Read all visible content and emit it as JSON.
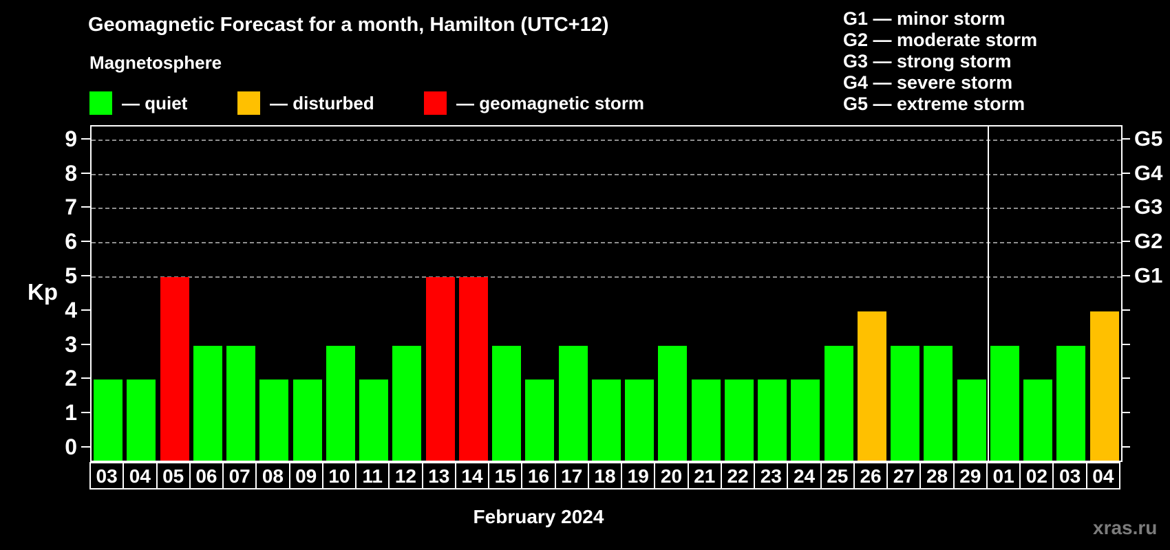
{
  "title": "Geomagnetic Forecast for a month, Hamilton (UTC+12)",
  "subtitle": "Magnetosphere",
  "legend": {
    "items": [
      {
        "key": "quiet",
        "label": "— quiet",
        "color": "#00ff00"
      },
      {
        "key": "disturbed",
        "label": "— disturbed",
        "color": "#ffc000"
      },
      {
        "key": "storm",
        "label": "— geomagnetic storm",
        "color": "#ff0000"
      }
    ]
  },
  "g_scale_legend": {
    "lines": [
      "G1 — minor storm",
      "G2 — moderate storm",
      "G3 — strong storm",
      "G4 — severe storm",
      "G5 — extreme storm"
    ]
  },
  "watermark": "xras.ru",
  "chart_data": {
    "type": "bar",
    "title": "Geomagnetic Forecast for a month, Hamilton (UTC+12)",
    "xlabel": "February 2024",
    "ylabel": "Kp",
    "ylim": [
      0,
      9
    ],
    "yticks": [
      0,
      1,
      2,
      3,
      4,
      5,
      6,
      7,
      8,
      9
    ],
    "grid": "dashed horizontal at Kp 5-9 only",
    "gridline_kp": [
      5,
      6,
      7,
      8,
      9
    ],
    "right_axis_labels": [
      {
        "kp": 5,
        "label": "G1"
      },
      {
        "kp": 6,
        "label": "G2"
      },
      {
        "kp": 7,
        "label": "G3"
      },
      {
        "kp": 8,
        "label": "G4"
      },
      {
        "kp": 9,
        "label": "G5"
      }
    ],
    "categories": [
      "03",
      "04",
      "05",
      "06",
      "07",
      "08",
      "09",
      "10",
      "11",
      "12",
      "13",
      "14",
      "15",
      "16",
      "17",
      "18",
      "19",
      "20",
      "21",
      "22",
      "23",
      "24",
      "25",
      "26",
      "27",
      "28",
      "29",
      "01",
      "02",
      "03",
      "04"
    ],
    "values": [
      2,
      2,
      5,
      3,
      3,
      2,
      2,
      3,
      2,
      3,
      5,
      5,
      3,
      2,
      3,
      2,
      2,
      3,
      2,
      2,
      2,
      2,
      3,
      4,
      3,
      3,
      2,
      3,
      2,
      3,
      4
    ],
    "statuses": [
      "quiet",
      "quiet",
      "storm",
      "quiet",
      "quiet",
      "quiet",
      "quiet",
      "quiet",
      "quiet",
      "quiet",
      "storm",
      "storm",
      "quiet",
      "quiet",
      "quiet",
      "quiet",
      "quiet",
      "quiet",
      "quiet",
      "quiet",
      "quiet",
      "quiet",
      "quiet",
      "disturbed",
      "quiet",
      "quiet",
      "quiet",
      "quiet",
      "quiet",
      "quiet",
      "disturbed"
    ],
    "colors": {
      "quiet": "#00ff00",
      "disturbed": "#ffc000",
      "storm": "#ff0000"
    },
    "month_separator_after_index": 26,
    "legend_position": "top-left"
  }
}
